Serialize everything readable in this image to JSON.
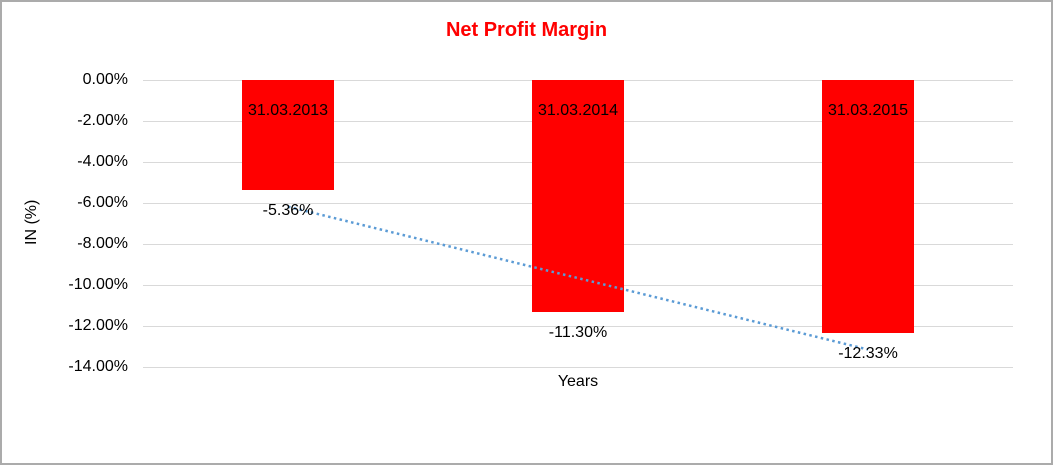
{
  "chart_data": {
    "type": "bar",
    "title": "Net Profit Margin",
    "title_color": "#ff0000",
    "xlabel": "Years",
    "ylabel": "IN (%)",
    "categories": [
      "31.03.2013",
      "31.03.2014",
      "31.03.2015"
    ],
    "values": [
      -5.36,
      -11.3,
      -12.33
    ],
    "value_labels": [
      "-5.36%",
      "-11.30%",
      "-12.33%"
    ],
    "category_label_position": "inside-top",
    "value_label_position": "below-bar",
    "bar_color": "#ff0000",
    "ylim": [
      0,
      -14
    ],
    "ytick_step": -2,
    "ytick_labels": [
      "0.00%",
      "-2.00%",
      "-4.00%",
      "-6.00%",
      "-8.00%",
      "-10.00%",
      "-12.00%",
      "-14.00%"
    ],
    "grid": true,
    "gridline_color": "#d9d9d9",
    "legend": "none",
    "trendline": {
      "type": "linear",
      "line_style": "dotted",
      "color": "#5b9bd5",
      "fitted_endpoints": [
        -6.18,
        -13.15
      ]
    }
  }
}
